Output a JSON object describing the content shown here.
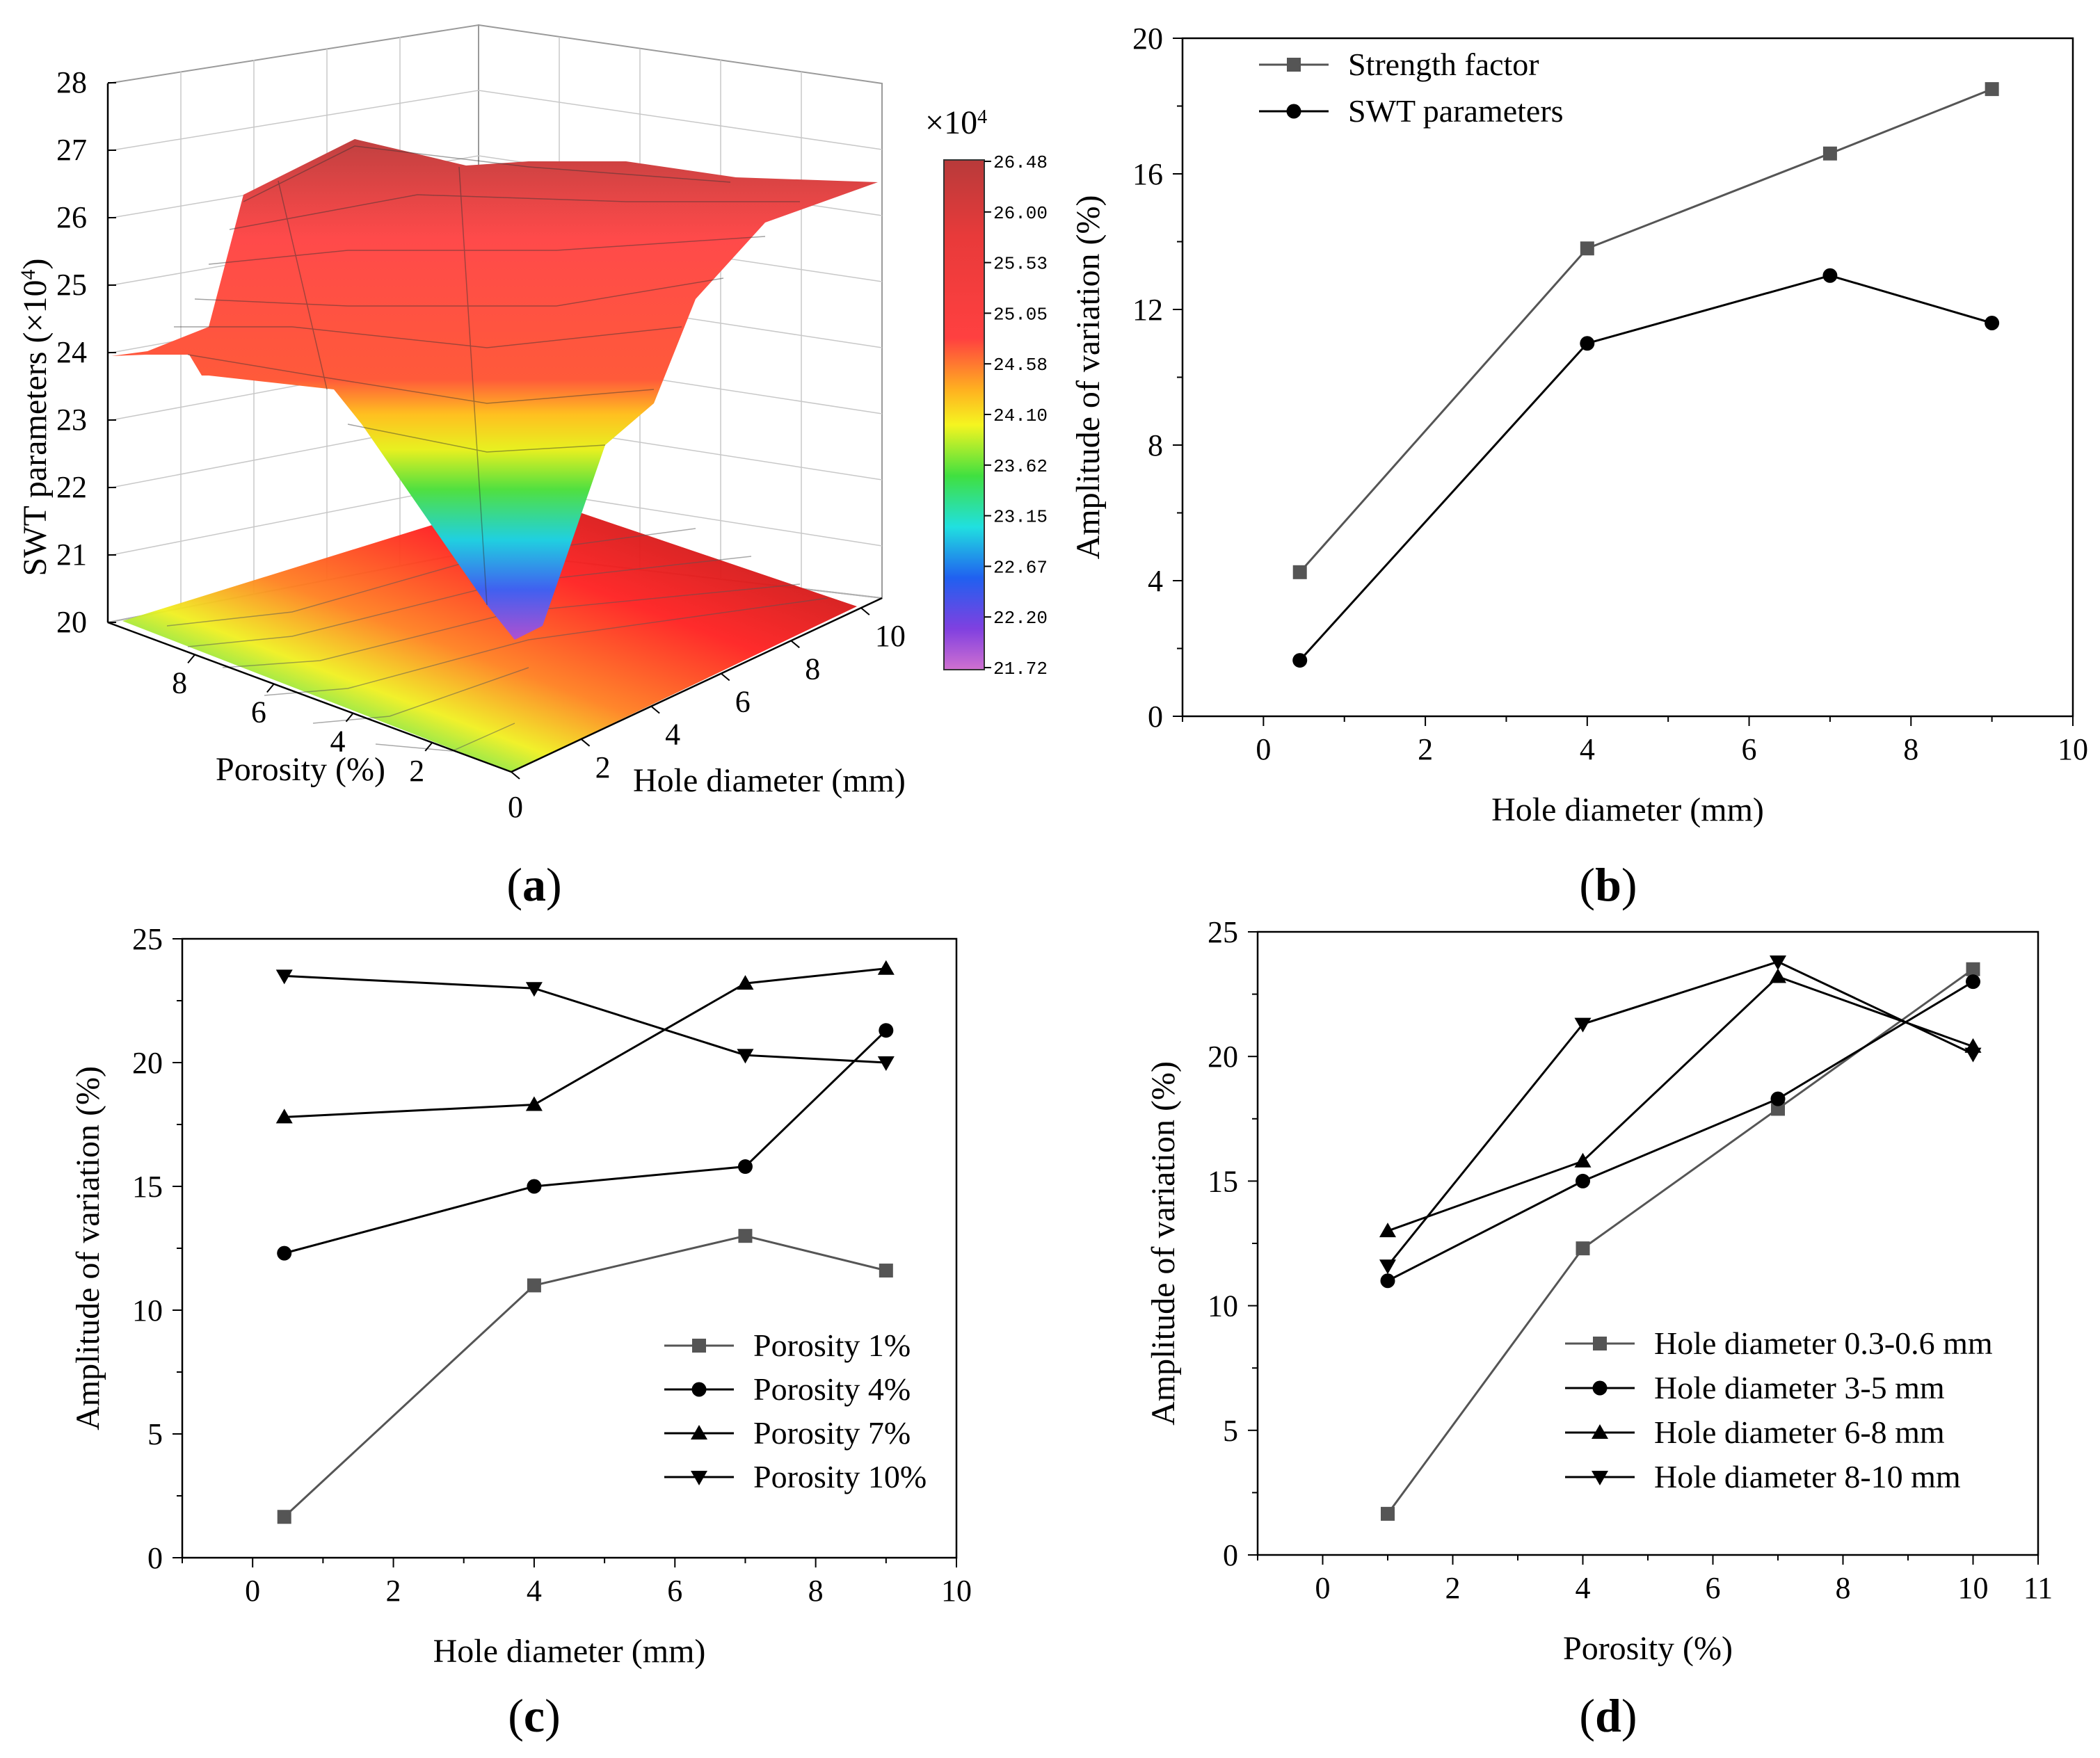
{
  "chart_data": [
    {
      "id": "a",
      "type": "surface3d",
      "panel_label": "a",
      "zlabel": "SWT parameters (×10",
      "zlabel_sup": "4",
      "zlabel_end": ")",
      "xlabel": "Hole diameter (mm)",
      "ylabel": "Porosity (%)",
      "z_ticks": [
        "20",
        "21",
        "22",
        "23",
        "24",
        "25",
        "26",
        "27",
        "28"
      ],
      "x_ticks": [
        "0",
        "2",
        "4",
        "6",
        "8",
        "10"
      ],
      "y_ticks": [
        "2",
        "4",
        "6",
        "8"
      ],
      "colorbar": {
        "multiplier": "×10",
        "multiplier_sup": "4",
        "ticks": [
          "26.48",
          "26.00",
          "25.53",
          "25.05",
          "24.58",
          "24.10",
          "23.62",
          "23.15",
          "22.67",
          "22.20",
          "21.72"
        ],
        "colors": [
          "#b83a3a",
          "#f03030",
          "#ff5a3a",
          "#ffb020",
          "#f5f520",
          "#60e020",
          "#20e0a0",
          "#20a0f0",
          "#2040e0",
          "#a040e0",
          "#c060d0"
        ]
      },
      "surface_description_values": {
        "min": 21.72,
        "max": 26.48
      }
    },
    {
      "id": "b",
      "type": "line",
      "panel_label": "b",
      "xlabel": "Hole diameter (mm)",
      "ylabel": "Amplitude of variation (%)",
      "xlim": [
        -1,
        10
      ],
      "ylim": [
        0,
        20
      ],
      "x_ticks": [
        "0",
        "2",
        "4",
        "6",
        "8",
        "10"
      ],
      "y_ticks": [
        "0",
        "4",
        "8",
        "12",
        "16",
        "20"
      ],
      "legend": "top-left",
      "series": [
        {
          "name": "Strength factor",
          "marker": "square",
          "color": "#555555",
          "x": [
            0.45,
            4,
            7,
            9
          ],
          "y": [
            4.25,
            13.8,
            16.6,
            18.5
          ]
        },
        {
          "name": "SWT parameters",
          "marker": "circle",
          "color": "#000000",
          "x": [
            0.45,
            4,
            7,
            9
          ],
          "y": [
            1.65,
            11.0,
            13.0,
            11.6
          ]
        }
      ]
    },
    {
      "id": "c",
      "type": "line",
      "panel_label": "c",
      "xlabel": "Hole diameter (mm)",
      "ylabel": "Amplitude of variation (%)",
      "xlim": [
        -1,
        10
      ],
      "ylim": [
        0,
        25
      ],
      "x_ticks": [
        "0",
        "2",
        "4",
        "6",
        "8",
        "10"
      ],
      "y_ticks": [
        "0",
        "5",
        "10",
        "15",
        "20",
        "25"
      ],
      "legend": "bottom-right",
      "series": [
        {
          "name": "Porosity 1%",
          "marker": "square",
          "color": "#555555",
          "x": [
            0.45,
            4,
            7,
            9
          ],
          "y": [
            1.65,
            11.0,
            13.0,
            11.6
          ]
        },
        {
          "name": "Porosity 4%",
          "marker": "circle",
          "color": "#000000",
          "x": [
            0.45,
            4,
            7,
            9
          ],
          "y": [
            12.3,
            15.0,
            15.8,
            21.3
          ]
        },
        {
          "name": "Porosity 7%",
          "marker": "triangle-up",
          "color": "#000000",
          "x": [
            0.45,
            4,
            7,
            9
          ],
          "y": [
            17.8,
            18.3,
            23.2,
            23.8
          ]
        },
        {
          "name": "Porosity 10%",
          "marker": "triangle-down",
          "color": "#000000",
          "x": [
            0.45,
            4,
            7,
            9
          ],
          "y": [
            23.5,
            23.0,
            20.3,
            20.0
          ]
        }
      ]
    },
    {
      "id": "d",
      "type": "line",
      "panel_label": "d",
      "xlabel": "Porosity (%)",
      "ylabel": "Amplitude of variation (%)",
      "xlim": [
        -1,
        11
      ],
      "ylim": [
        0,
        25
      ],
      "x_ticks": [
        "0",
        "2",
        "4",
        "6",
        "8",
        "10",
        "11"
      ],
      "y_ticks": [
        "0",
        "5",
        "10",
        "15",
        "20",
        "25"
      ],
      "legend": "bottom-right",
      "series": [
        {
          "name": "Hole diameter 0.3-0.6 mm",
          "marker": "square",
          "color": "#555555",
          "x": [
            1,
            4,
            7,
            10
          ],
          "y": [
            1.65,
            12.3,
            17.9,
            23.5
          ]
        },
        {
          "name": "Hole diameter 3-5 mm",
          "marker": "circle",
          "color": "#000000",
          "x": [
            1,
            4,
            7,
            10
          ],
          "y": [
            11.0,
            15.0,
            18.3,
            23.0
          ]
        },
        {
          "name": "Hole diameter 6-8 mm",
          "marker": "triangle-up",
          "color": "#000000",
          "x": [
            1,
            4,
            7,
            10
          ],
          "y": [
            13.0,
            15.8,
            23.2,
            20.4
          ]
        },
        {
          "name": "Hole diameter 8-10 mm",
          "marker": "triangle-down",
          "color": "#000000",
          "x": [
            1,
            4,
            7,
            10
          ],
          "y": [
            11.6,
            21.3,
            23.8,
            20.1
          ]
        }
      ]
    }
  ]
}
